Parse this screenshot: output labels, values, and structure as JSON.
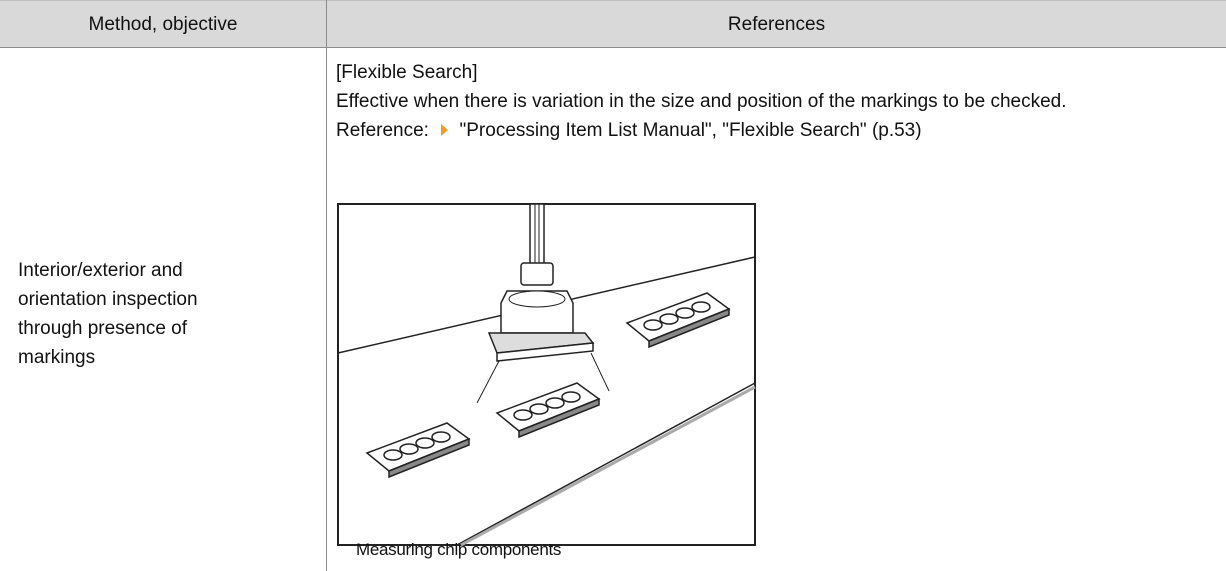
{
  "table": {
    "header": [
      "Method, objective",
      "References"
    ],
    "rows": [
      {
        "method": "Interior/exterior and orientation inspection through presence of markings",
        "references": {
          "heading": "[Flexible Search]",
          "description": "Effective when there is variation in the size and position of the markings to be checked.",
          "reference_label": "Reference:",
          "reference_link": "\"Processing Item List Manual\", \"Flexible Search\" (p.53)",
          "figure_caption": "Measuring chip components"
        }
      }
    ]
  }
}
